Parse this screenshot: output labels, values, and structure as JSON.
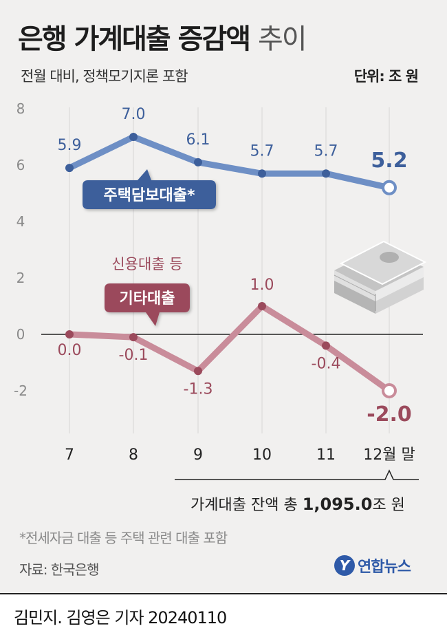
{
  "title": {
    "main": "은행 가계대출 증감액",
    "light": "추이"
  },
  "subtitle": "전월 대비, 정책모기지론 포함",
  "unit": "단위: 조 원",
  "chart_data": {
    "type": "line",
    "x": [
      "7",
      "8",
      "9",
      "10",
      "11",
      "12월 말"
    ],
    "ylim": [
      -2,
      8
    ],
    "yticks": [
      "8",
      "6",
      "4",
      "2",
      "0",
      "-2"
    ],
    "grid": "vertical",
    "series": [
      {
        "name": "주택담보대출*",
        "values": [
          5.9,
          7.0,
          6.1,
          5.7,
          5.7,
          5.2
        ],
        "labels": [
          "5.9",
          "7.0",
          "6.1",
          "5.7",
          "5.7",
          "5.2"
        ],
        "color": "#6e8fc5",
        "accent": "#3d5f9b"
      },
      {
        "name": "기타대출",
        "note": "신용대출 등",
        "values": [
          0.0,
          -0.1,
          -1.3,
          1.0,
          -0.4,
          -2.0
        ],
        "labels": [
          "0.0",
          "-0.1",
          "-1.3",
          "1.0",
          "-0.4",
          "-2.0"
        ],
        "color": "#c98c9a",
        "accent": "#9b4a5c"
      }
    ],
    "annotation": {
      "prefix": "가계대출 잔액 총 ",
      "value": "1,095.0",
      "suffix": "조 원"
    }
  },
  "footnote": "*전세자금 대출 등 주택 관련 대출 포함",
  "source": "자료: 한국은행",
  "logo": {
    "mark": "Y",
    "text": "연합뉴스"
  },
  "byline": "김민지. 김영은 기자  20240110"
}
